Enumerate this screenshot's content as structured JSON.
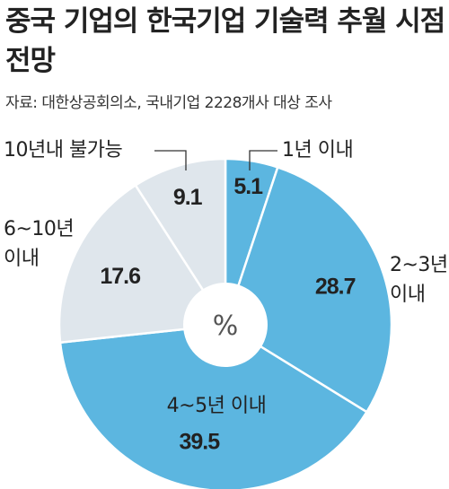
{
  "title": "중국 기업의 한국기업 기술력 추월 시점 전망",
  "source": "자료: 대한상공회의소, 국내기업 2228개사 대상 조사",
  "center_label": "%",
  "colors": {
    "blue": "#5cb6e0",
    "gray": "#dfe6ec",
    "text": "#222222",
    "line": "#333333"
  },
  "chart_data": {
    "type": "pie",
    "unit": "%",
    "donut": true,
    "slices": [
      {
        "label": "1년 이내",
        "value": 5.1,
        "color": "blue"
      },
      {
        "label": "2~3년 이내",
        "value": 28.7,
        "color": "blue"
      },
      {
        "label": "4~5년 이내",
        "value": 39.5,
        "color": "blue"
      },
      {
        "label": "6~10년 이내",
        "value": 17.6,
        "color": "gray"
      },
      {
        "label": "10년내 불가능",
        "value": 9.1,
        "color": "gray"
      }
    ]
  }
}
